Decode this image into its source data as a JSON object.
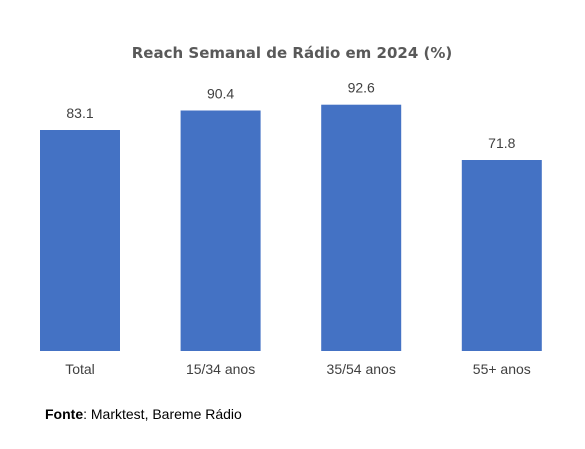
{
  "chart_data": {
    "type": "bar",
    "title": "Reach Semanal de Rádio em 2024 (%)",
    "categories": [
      "Total",
      "15/34 anos",
      "35/54 anos",
      "55+ anos"
    ],
    "values": [
      83.1,
      90.4,
      92.6,
      71.8
    ],
    "data_labels": [
      "83.1",
      "90.4",
      "92.6",
      "71.8"
    ],
    "xlabel": "",
    "ylabel": "",
    "ylim": [
      0,
      100
    ],
    "grid": false,
    "legend": "none",
    "bar_color": "#4472C4"
  },
  "source": {
    "label": "Fonte",
    "text": ": Marktest, Bareme Rádio"
  }
}
